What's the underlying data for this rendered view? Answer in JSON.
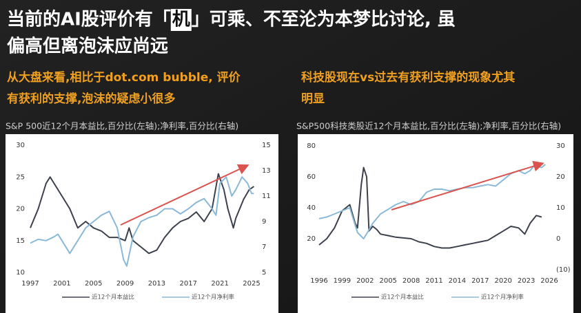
{
  "header": {
    "title": [
      "当前的AI股评价有「",
      "机",
      "」可乘、不至沦为本梦比讨论, 虽",
      "偏高但离泡沫应尚远"
    ],
    "left_note": [
      "从大盘来看,相比于dot.com bubble, 评价",
      "有获利的支撑,泡沫的疑虑小很多"
    ],
    "right_note": [
      "科技股现在vs过去有获利支撑的现象尤其",
      "明显"
    ]
  },
  "chart_data": [
    {
      "type": "line",
      "title": "S&P 500近12个月本益比,百分比(左轴);净利率,百分比(右轴)",
      "xlim": [
        1997,
        2025
      ],
      "xticks": [
        1997,
        2001,
        2005,
        2009,
        2013,
        2017,
        2021,
        2025
      ],
      "ylim": [
        10,
        30
      ],
      "yticks": [
        10,
        15,
        20,
        25,
        30
      ],
      "y2lim": [
        5,
        15
      ],
      "y2ticks": [
        5,
        7,
        9,
        11,
        13,
        15
      ],
      "series": [
        {
          "name": "近12个月本益比",
          "color": "#3b404b",
          "x": [
            1997,
            1998,
            1999,
            1999.5,
            2000,
            2001,
            2002,
            2003,
            2004,
            2005,
            2006,
            2007,
            2008,
            2009,
            2009.5,
            2010,
            2011,
            2012,
            2013,
            2014,
            2015,
            2016,
            2017,
            2018,
            2019,
            2020,
            2020.8,
            2021.5,
            2022,
            2022.7,
            2023,
            2024,
            2024.7,
            2025.3
          ],
          "values": [
            17,
            20,
            24,
            25,
            24,
            22,
            20,
            17,
            18,
            17,
            16.5,
            15.5,
            15.5,
            15,
            17,
            15,
            14,
            13,
            13.5,
            15.5,
            17,
            18,
            18.5,
            19.5,
            18,
            20,
            25.5,
            23,
            20,
            17,
            18.5,
            21.5,
            23,
            23.5
          ]
        },
        {
          "name": "近12个月净利率",
          "color": "#8ab8d8",
          "axis": "y2",
          "x": [
            1997,
            1998,
            1999,
            2000,
            2000.5,
            2001,
            2002,
            2003,
            2004,
            2005,
            2006,
            2007,
            2008,
            2008.8,
            2009.2,
            2010,
            2011,
            2012,
            2013,
            2014,
            2015,
            2016,
            2017,
            2018,
            2019,
            2020,
            2020.5,
            2021,
            2021.8,
            2022.5,
            2023,
            2023.8,
            2024.5,
            2025,
            2025.3
          ],
          "values": [
            7.3,
            7.6,
            7.5,
            7.8,
            8,
            7.5,
            6.5,
            7.5,
            8.5,
            9,
            9.5,
            9.8,
            8.5,
            6,
            5.5,
            7.8,
            9,
            9.3,
            9.5,
            10,
            10,
            9.6,
            10,
            10.5,
            10.8,
            10,
            9.5,
            12,
            12.5,
            11,
            11.5,
            12.5,
            12,
            11.2,
            11.2
          ]
        }
      ]
    },
    {
      "type": "line",
      "title": "S&P500科技类股近12个月本益比,百分比(左轴);净利率,百分比(右轴)",
      "xlim": [
        1996,
        2026
      ],
      "xticks": [
        1996,
        1999,
        2002,
        2005,
        2008,
        2011,
        2014,
        2017,
        2020,
        2023,
        2026
      ],
      "ylim": [
        0,
        80
      ],
      "yticks": [
        20,
        40,
        60,
        80
      ],
      "y2lim": [
        -10,
        30
      ],
      "y2ticks": [
        {
          "value": -10,
          "label": "(10)"
        },
        0,
        10,
        20,
        30
      ],
      "series": [
        {
          "name": "近12个月本益比",
          "color": "#3b404b",
          "x": [
            1996,
            1997,
            1998,
            1999,
            2000,
            2000.7,
            2001,
            2001.5,
            2001.8,
            2002.2,
            2002.5,
            2003,
            2003.5,
            2004,
            2005,
            2006,
            2007,
            2008,
            2009,
            2010,
            2011,
            2012,
            2013,
            2014,
            2015,
            2016,
            2017,
            2018,
            2019,
            2020,
            2021,
            2022,
            2022.8,
            2023.5,
            2024.3,
            2025
          ],
          "values": [
            16,
            20,
            27,
            38,
            42,
            30,
            27,
            55,
            66,
            60,
            25,
            28,
            26,
            23,
            22,
            21,
            20.5,
            20,
            18,
            17,
            15,
            14,
            14,
            15,
            16,
            17,
            18,
            19,
            22,
            25,
            28,
            27,
            23,
            30,
            35,
            34
          ]
        },
        {
          "name": "近12个月净利率",
          "color": "#8ab8d8",
          "axis": "y2",
          "x": [
            1996,
            1997,
            1998,
            1999,
            2000,
            2001,
            2001.8,
            2002.3,
            2003,
            2004,
            2005,
            2006,
            2007,
            2008,
            2009,
            2010,
            2011,
            2012,
            2013,
            2014,
            2015,
            2016,
            2017,
            2018,
            2019,
            2020,
            2021,
            2022,
            2022.8,
            2023.5,
            2024,
            2025,
            2025.5
          ],
          "values": [
            6.5,
            7,
            8,
            9,
            10,
            2,
            0,
            2,
            5,
            8,
            9.5,
            11,
            12,
            11,
            12,
            15,
            16,
            16,
            15.5,
            16,
            16.5,
            16.5,
            17,
            17.5,
            17,
            19,
            21,
            22,
            21,
            22,
            23.5,
            23,
            24
          ]
        }
      ]
    }
  ]
}
